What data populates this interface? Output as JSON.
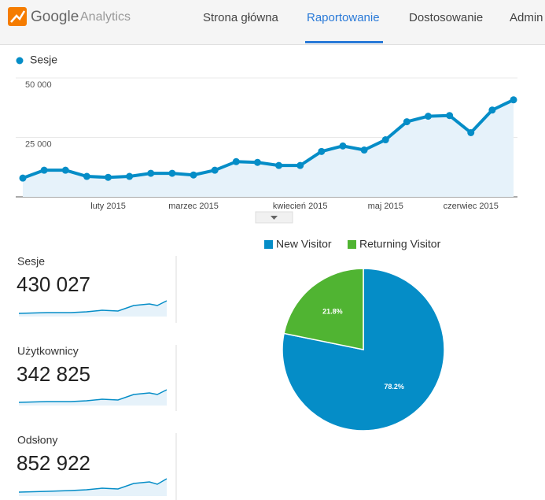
{
  "header": {
    "logo_brand": "Google",
    "logo_product": "Analytics",
    "nav": [
      "Strona główna",
      "Raportowanie",
      "Dostosowanie",
      "Admin"
    ],
    "active_nav": 1
  },
  "chart_data": [
    {
      "type": "line",
      "categories": [
        null,
        null,
        null,
        null,
        "luty 2015",
        null,
        null,
        null,
        "marzec 2015",
        null,
        null,
        null,
        null,
        "kwiecień 2015",
        null,
        null,
        null,
        "maj 2015",
        null,
        null,
        null,
        "czerwiec 2015",
        null,
        null
      ],
      "series": [
        {
          "name": "Sesje",
          "color": "#058dc7",
          "values": [
            7900,
            11200,
            11200,
            8600,
            8200,
            8600,
            9900,
            9900,
            9200,
            11200,
            14800,
            14500,
            13200,
            13200,
            19100,
            21400,
            19700,
            24000,
            31600,
            33900,
            34200,
            27000,
            36500,
            40800
          ]
        }
      ],
      "ylim": [
        0,
        50000
      ],
      "yticks": [
        {
          "value": 25000,
          "label": "25 000"
        },
        {
          "value": 50000,
          "label": "50 000"
        }
      ],
      "grid": true
    },
    {
      "type": "pie",
      "categories": [
        "New Visitor",
        "Returning Visitor"
      ],
      "values": [
        78.2,
        21.8
      ],
      "value_labels": [
        "78.2%",
        "21.8%"
      ],
      "colors": [
        "#058dc7",
        "#50b432"
      ]
    }
  ],
  "metrics": [
    {
      "label": "Sesje",
      "value": "430 027"
    },
    {
      "label": "Użytkownicy",
      "value": "342 825"
    },
    {
      "label": "Odsłony",
      "value": "852 922"
    }
  ]
}
